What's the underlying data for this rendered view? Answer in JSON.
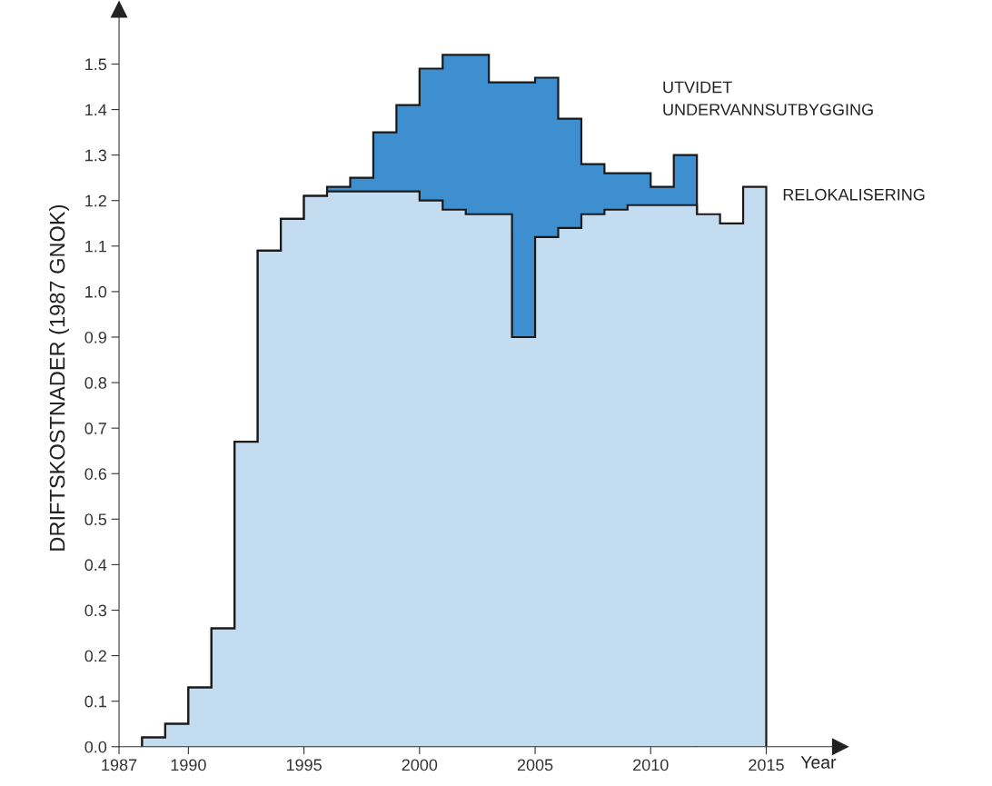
{
  "chart_data": {
    "type": "histogram",
    "ylabel": "DRIFTSKOSTNADER (1987 GNOK)",
    "xlabel": "Year",
    "bins": [
      1988,
      1989,
      1990,
      1991,
      1992,
      1993,
      1994,
      1995,
      1996,
      1997,
      1998,
      1999,
      2000,
      2001,
      2002,
      2003,
      2004,
      2005,
      2006,
      2007,
      2008,
      2009,
      2010,
      2011,
      2012,
      2013,
      2014,
      2015
    ],
    "series": [
      {
        "name": "UTVIDET\nUNDERVANNSUTBYGGING",
        "color": "#3d8fd0",
        "bins": [
          1988,
          1989,
          1990,
          1991,
          1992,
          1993,
          1994,
          1995,
          1996,
          1997,
          1998,
          1999,
          2000,
          2001,
          2002,
          2003,
          2004,
          2005,
          2006,
          2007,
          2008,
          2009,
          2010,
          2011,
          2012
        ],
        "values": [
          0.02,
          0.05,
          0.13,
          0.26,
          0.67,
          1.09,
          1.16,
          1.21,
          1.23,
          1.25,
          1.35,
          1.41,
          1.49,
          1.52,
          1.52,
          1.46,
          1.46,
          1.47,
          1.38,
          1.28,
          1.26,
          1.26,
          1.23,
          1.3
        ]
      },
      {
        "name": "RELOKALISERING",
        "color": "#c4dcf0",
        "values": [
          0.02,
          0.05,
          0.13,
          0.26,
          0.67,
          1.09,
          1.16,
          1.21,
          1.22,
          1.22,
          1.22,
          1.22,
          1.2,
          1.18,
          1.17,
          1.17,
          0.9,
          1.12,
          1.14,
          1.17,
          1.18,
          1.19,
          1.19,
          1.19,
          1.17,
          1.15,
          1.23
        ]
      }
    ],
    "xlim": [
      1987,
      2018.2
    ],
    "ylim": [
      0,
      1.62
    ],
    "xticks": [
      1987,
      1990,
      1995,
      2000,
      2005,
      2010,
      2015
    ],
    "yticks": [
      {
        "value": 0,
        "label": "0.0"
      },
      0.1,
      0.2,
      0.3,
      0.4,
      0.5,
      0.6,
      0.7,
      0.8,
      0.9,
      {
        "value": 1,
        "label": "1.0"
      },
      1.1,
      1.2,
      1.3,
      1.4,
      1.5
    ],
    "grid": false,
    "legend": false
  }
}
